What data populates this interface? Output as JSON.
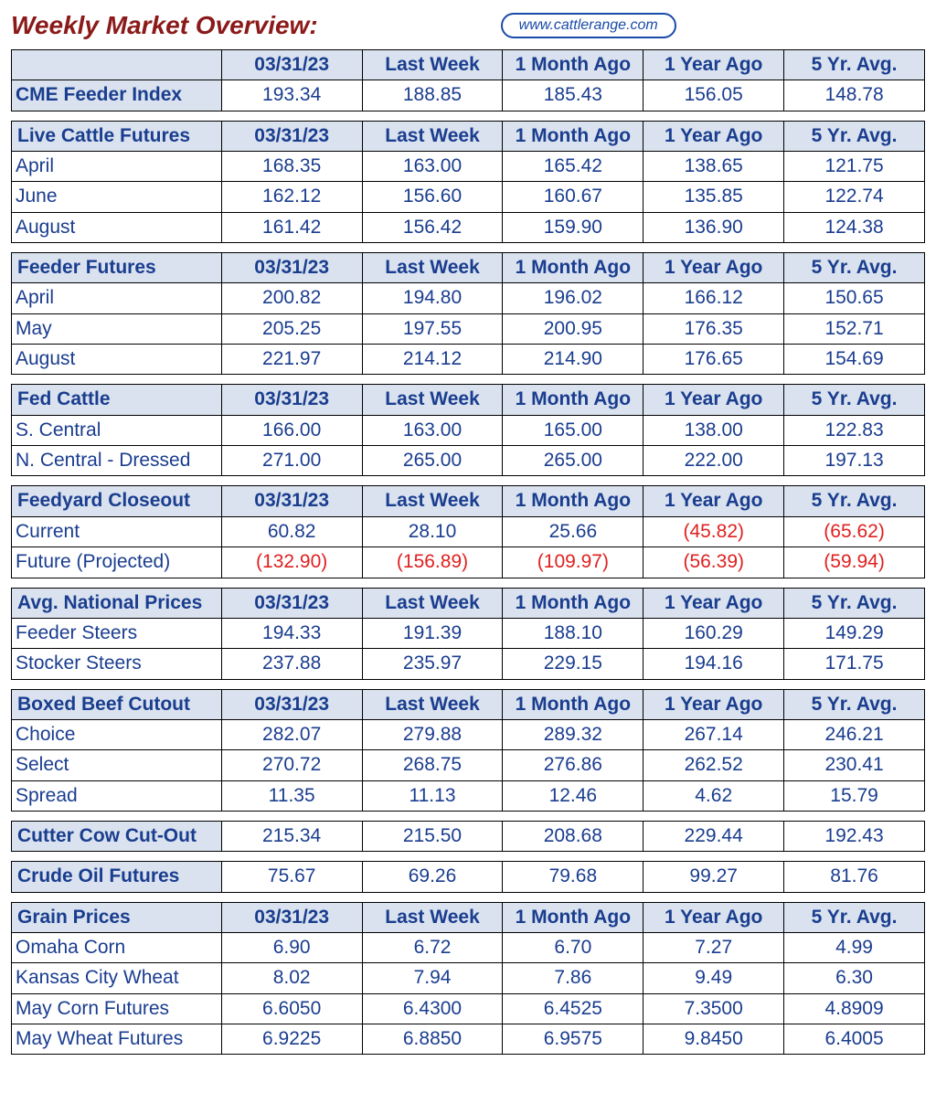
{
  "title": "Weekly Market Overview:",
  "badge": "www.cattlerange.com",
  "colors": {
    "title": "#8b1a1a",
    "header_bg": "#d9e2ee",
    "header_fg": "#1a3d8f",
    "value_fg": "#1a3d8f",
    "negative_fg": "#e02020",
    "border": "#000000",
    "badge_border": "#1a4ba8"
  },
  "column_headers": [
    "03/31/23",
    "Last Week",
    "1 Month Ago",
    "1 Year Ago",
    "5 Yr. Avg."
  ],
  "sections": [
    {
      "id": "cme",
      "label": "",
      "show_header": true,
      "rows": [
        {
          "label": "CME Feeder Index",
          "bold": true,
          "values": [
            "193.34",
            "188.85",
            "185.43",
            "156.05",
            "148.78"
          ],
          "neg": [
            false,
            false,
            false,
            false,
            false
          ]
        }
      ]
    },
    {
      "id": "live_cattle",
      "label": "Live Cattle Futures",
      "show_header": true,
      "rows": [
        {
          "label": "April",
          "values": [
            "168.35",
            "163.00",
            "165.42",
            "138.65",
            "121.75"
          ],
          "neg": [
            false,
            false,
            false,
            false,
            false
          ]
        },
        {
          "label": "June",
          "values": [
            "162.12",
            "156.60",
            "160.67",
            "135.85",
            "122.74"
          ],
          "neg": [
            false,
            false,
            false,
            false,
            false
          ]
        },
        {
          "label": "August",
          "values": [
            "161.42",
            "156.42",
            "159.90",
            "136.90",
            "124.38"
          ],
          "neg": [
            false,
            false,
            false,
            false,
            false
          ]
        }
      ]
    },
    {
      "id": "feeder_futures",
      "label": "Feeder Futures",
      "show_header": true,
      "rows": [
        {
          "label": "April",
          "values": [
            "200.82",
            "194.80",
            "196.02",
            "166.12",
            "150.65"
          ],
          "neg": [
            false,
            false,
            false,
            false,
            false
          ]
        },
        {
          "label": "May",
          "values": [
            "205.25",
            "197.55",
            "200.95",
            "176.35",
            "152.71"
          ],
          "neg": [
            false,
            false,
            false,
            false,
            false
          ]
        },
        {
          "label": "August",
          "values": [
            "221.97",
            "214.12",
            "214.90",
            "176.65",
            "154.69"
          ],
          "neg": [
            false,
            false,
            false,
            false,
            false
          ]
        }
      ]
    },
    {
      "id": "fed_cattle",
      "label": "Fed Cattle",
      "show_header": true,
      "rows": [
        {
          "label": "S. Central",
          "values": [
            "166.00",
            "163.00",
            "165.00",
            "138.00",
            "122.83"
          ],
          "neg": [
            false,
            false,
            false,
            false,
            false
          ]
        },
        {
          "label": "N. Central - Dressed",
          "values": [
            "271.00",
            "265.00",
            "265.00",
            "222.00",
            "197.13"
          ],
          "neg": [
            false,
            false,
            false,
            false,
            false
          ]
        }
      ]
    },
    {
      "id": "feedyard",
      "label": "Feedyard Closeout",
      "show_header": true,
      "rows": [
        {
          "label": "Current",
          "values": [
            "60.82",
            "28.10",
            "25.66",
            "(45.82)",
            "(65.62)"
          ],
          "neg": [
            false,
            false,
            false,
            true,
            true
          ]
        },
        {
          "label": "Future (Projected)",
          "values": [
            "(132.90)",
            "(156.89)",
            "(109.97)",
            "(56.39)",
            "(59.94)"
          ],
          "neg": [
            true,
            true,
            true,
            true,
            true
          ]
        }
      ]
    },
    {
      "id": "avg_prices",
      "label": "Avg. National Prices",
      "show_header": true,
      "rows": [
        {
          "label": "Feeder Steers",
          "values": [
            "194.33",
            "191.39",
            "188.10",
            "160.29",
            "149.29"
          ],
          "neg": [
            false,
            false,
            false,
            false,
            false
          ]
        },
        {
          "label": "Stocker Steers",
          "values": [
            "237.88",
            "235.97",
            "229.15",
            "194.16",
            "171.75"
          ],
          "neg": [
            false,
            false,
            false,
            false,
            false
          ]
        }
      ]
    },
    {
      "id": "boxed_beef",
      "label": "Boxed Beef Cutout",
      "show_header": true,
      "rows": [
        {
          "label": "Choice",
          "values": [
            "282.07",
            "279.88",
            "289.32",
            "267.14",
            "246.21"
          ],
          "neg": [
            false,
            false,
            false,
            false,
            false
          ]
        },
        {
          "label": "Select",
          "values": [
            "270.72",
            "268.75",
            "276.86",
            "262.52",
            "230.41"
          ],
          "neg": [
            false,
            false,
            false,
            false,
            false
          ]
        },
        {
          "label": " Spread",
          "values": [
            "11.35",
            "11.13",
            "12.46",
            "4.62",
            "15.79"
          ],
          "neg": [
            false,
            false,
            false,
            false,
            false
          ]
        }
      ]
    },
    {
      "id": "cutter_cow",
      "label": "Cutter Cow Cut-Out",
      "show_header": false,
      "rows": [
        {
          "label": "Cutter Cow Cut-Out",
          "bold": true,
          "values": [
            "215.34",
            "215.50",
            "208.68",
            "229.44",
            "192.43"
          ],
          "neg": [
            false,
            false,
            false,
            false,
            false
          ]
        }
      ]
    },
    {
      "id": "crude_oil",
      "label": "Crude Oil Futures",
      "show_header": false,
      "rows": [
        {
          "label": "Crude Oil Futures",
          "bold": true,
          "values": [
            "75.67",
            "69.26",
            "79.68",
            "99.27",
            "81.76"
          ],
          "neg": [
            false,
            false,
            false,
            false,
            false
          ]
        }
      ]
    },
    {
      "id": "grain",
      "label": "Grain Prices",
      "show_header": true,
      "rows": [
        {
          "label": "Omaha Corn",
          "values": [
            "6.90",
            "6.72",
            "6.70",
            "7.27",
            "4.99"
          ],
          "neg": [
            false,
            false,
            false,
            false,
            false
          ]
        },
        {
          "label": "Kansas City Wheat",
          "values": [
            "8.02",
            "7.94",
            "7.86",
            "9.49",
            "6.30"
          ],
          "neg": [
            false,
            false,
            false,
            false,
            false
          ]
        },
        {
          "label": "May Corn Futures",
          "values": [
            "6.6050",
            "6.4300",
            "6.4525",
            "7.3500",
            "4.8909"
          ],
          "neg": [
            false,
            false,
            false,
            false,
            false
          ]
        },
        {
          "label": "May Wheat Futures",
          "values": [
            "6.9225",
            "6.8850",
            "6.9575",
            "9.8450",
            "6.4005"
          ],
          "neg": [
            false,
            false,
            false,
            false,
            false
          ]
        }
      ]
    }
  ]
}
